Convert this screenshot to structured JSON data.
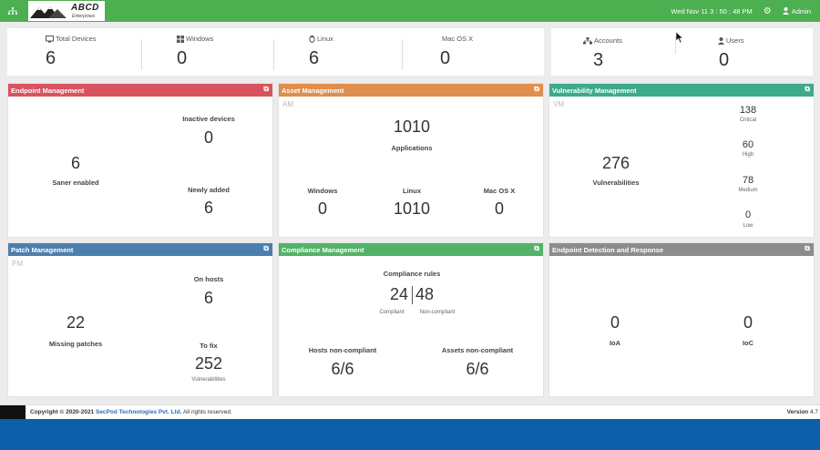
{
  "topbar": {
    "logo_name": "ABCD",
    "logo_sub": "Enterprises",
    "datetime": "Wed Nov 11  3 : 50 : 48 PM",
    "user": "Admin"
  },
  "summary": [
    {
      "label": "Total Devices",
      "value": "6",
      "icon": "monitor-icon"
    },
    {
      "label": "Windows",
      "value": "0",
      "icon": "windows-icon"
    },
    {
      "label": "Linux",
      "value": "6",
      "icon": "linux-icon"
    },
    {
      "label": "Mac OS X",
      "value": "0",
      "icon": "apple-icon"
    },
    {
      "label": "Accounts",
      "value": "3",
      "icon": "accounts-icon"
    },
    {
      "label": "Users",
      "value": "0",
      "icon": "users-icon"
    }
  ],
  "endpoint": {
    "title": "Endpoint Management",
    "saner_value": "6",
    "saner_label": "Saner enabled",
    "inactive_label": "Inactive devices",
    "inactive_value": "0",
    "new_label": "Newly added",
    "new_value": "6"
  },
  "asset": {
    "title": "Asset Management",
    "tag": "AM",
    "apps_value": "1010",
    "apps_label": "Applications",
    "win_label": "Windows",
    "win_value": "0",
    "linux_label": "Linux",
    "linux_value": "1010",
    "mac_label": "Mac OS X",
    "mac_value": "0"
  },
  "vuln": {
    "title": "Vulnerability Management",
    "tag": "VM",
    "total_value": "276",
    "total_label": "Vulnerabilities",
    "critical_value": "138",
    "critical_label": "Critical",
    "high_value": "60",
    "high_label": "High",
    "medium_value": "78",
    "medium_label": "Medium",
    "low_value": "0",
    "low_label": "Low"
  },
  "patch": {
    "title": "Patch Management",
    "tag": "PM",
    "missing_value": "22",
    "missing_label": "Missing patches",
    "hosts_label": "On hosts",
    "hosts_value": "6",
    "fix_label": "To fix",
    "fix_value": "252",
    "fix_sub": "Vulnerabilities"
  },
  "compliance": {
    "title": "Compliance Management",
    "rules_label": "Compliance rules",
    "compliant_value": "24",
    "compliant_label": "Compliant",
    "noncompliant_value": "48",
    "noncompliant_label": "Non-compliant",
    "hosts_label": "Hosts non-compliant",
    "hosts_value": "6/6",
    "assets_label": "Assets non-compliant",
    "assets_value": "6/6"
  },
  "edr": {
    "title": "Endpoint Detection and Response",
    "ioa_value": "0",
    "ioa_label": "IoA",
    "ioc_value": "0",
    "ioc_label": "IoC"
  },
  "footer": {
    "copyright_prefix": "Copyright © 2020-2021 ",
    "company": "SecPod Technologies Pvt. Ltd.",
    "rights": " All rights reserved.",
    "version_label": "Version",
    "version_value": "4.7"
  },
  "colors": {
    "topbar": "#4caf50",
    "endpoint": "#d9535f",
    "asset": "#e08e4d",
    "vuln": "#3daa8c",
    "patch": "#4d7fae",
    "compliance": "#52b366",
    "edr": "#8c8c8c",
    "bottom_band": "#0c5fa8"
  }
}
